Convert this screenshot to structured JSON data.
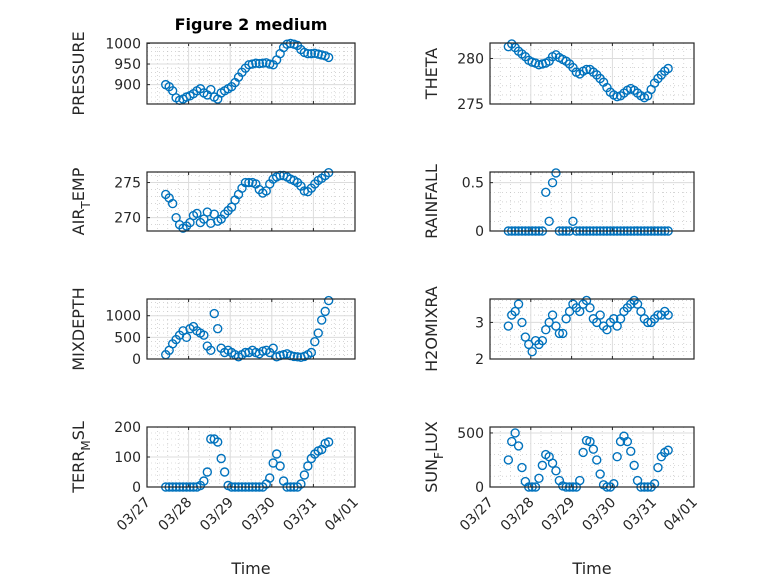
{
  "figure_title": "Figure 2 medium",
  "colors": {
    "marker": "#0072BD",
    "axis": "#262626",
    "grid": "#dcdcdc"
  },
  "chart_data": {
    "type": "scatter",
    "x_axis": {
      "label": "Time",
      "tick_labels": [
        "03/27",
        "03/28",
        "03/29",
        "03/30",
        "03/31",
        "04/01"
      ],
      "range_days_since_0327": [
        0,
        5
      ],
      "t0_days": 0.45,
      "step_hours": 2
    },
    "grid": true,
    "panels": [
      {
        "id": "pressure",
        "ylabel": {
          "main": "PRESSURE",
          "sub": "",
          "rest": ""
        },
        "ylim": [
          853,
          1001
        ],
        "yticks": [
          900,
          950,
          1000
        ],
        "values": [
          900,
          895,
          885,
          868,
          862,
          865,
          870,
          873,
          878,
          885,
          890,
          880,
          875,
          888,
          870,
          865,
          880,
          885,
          890,
          895,
          905,
          918,
          930,
          940,
          948,
          950,
          952,
          951,
          952,
          953,
          950,
          948,
          960,
          975,
          990,
          998,
          1000,
          998,
          995,
          985,
          978,
          975,
          975,
          976,
          974,
          972,
          970,
          966
        ]
      },
      {
        "id": "theta",
        "ylabel": {
          "main": "THETA",
          "sub": "",
          "rest": ""
        },
        "ylim": [
          275,
          281.7
        ],
        "yticks": [
          275,
          280
        ],
        "values": [
          281.3,
          281.6,
          281.2,
          280.8,
          280.5,
          280.2,
          279.8,
          279.6,
          279.5,
          279.3,
          279.4,
          279.5,
          279.7,
          280.2,
          280.4,
          280.1,
          279.9,
          279.7,
          279.4,
          279.0,
          278.5,
          278.3,
          278.6,
          278.8,
          278.8,
          278.5,
          278.2,
          277.8,
          277.4,
          276.8,
          276.3,
          276.0,
          275.8,
          275.9,
          276.2,
          276.5,
          276.7,
          276.5,
          276.2,
          275.9,
          275.7,
          275.9,
          276.6,
          277.3,
          277.8,
          278.2,
          278.6,
          278.9
        ]
      },
      {
        "id": "air_temp",
        "ylabel": {
          "main": "AIR",
          "sub": "T",
          "rest": "EMP"
        },
        "ylim": [
          268.1,
          276.5
        ],
        "yticks": [
          270,
          275
        ],
        "values": [
          273.3,
          272.8,
          272,
          270,
          269,
          268.5,
          268.8,
          269.3,
          270.3,
          270.6,
          269.3,
          269.8,
          270.8,
          269.2,
          270.5,
          269.5,
          269.8,
          270.5,
          271,
          271.5,
          272.5,
          273.3,
          274.2,
          275,
          275,
          275,
          274.8,
          274,
          273.5,
          273.8,
          274.8,
          275.5,
          275.8,
          276,
          276,
          275.8,
          275.5,
          275.3,
          275,
          274.5,
          273.8,
          273.7,
          274.2,
          274.8,
          275.3,
          275.6,
          276,
          276.4
        ]
      },
      {
        "id": "rainfall",
        "ylabel": {
          "main": "RAINFALL",
          "sub": "",
          "rest": ""
        },
        "ylim": [
          0,
          0.61
        ],
        "yticks": [
          0,
          0.5
        ],
        "values": [
          0,
          0,
          0,
          0,
          0,
          0,
          0,
          0,
          0,
          0,
          0,
          0.4,
          0.1,
          0.5,
          0.6,
          0,
          0,
          0,
          0,
          0.1,
          0,
          0,
          0,
          0,
          0,
          0,
          0,
          0,
          0,
          0,
          0,
          0,
          0,
          0,
          0,
          0,
          0,
          0,
          0,
          0,
          0,
          0,
          0,
          0,
          0,
          0,
          0,
          0
        ]
      },
      {
        "id": "mixdepth",
        "ylabel": {
          "main": "MIXDEPTH",
          "sub": "",
          "rest": ""
        },
        "ylim": [
          0,
          1386
        ],
        "yticks": [
          0,
          500,
          1000
        ],
        "values": [
          100,
          200,
          350,
          450,
          550,
          650,
          500,
          700,
          750,
          650,
          600,
          550,
          300,
          200,
          1050,
          700,
          250,
          150,
          200,
          150,
          100,
          50,
          100,
          150,
          150,
          200,
          150,
          120,
          180,
          200,
          150,
          250,
          50,
          80,
          100,
          120,
          80,
          60,
          50,
          40,
          60,
          100,
          150,
          400,
          600,
          900,
          1100,
          1350
        ]
      },
      {
        "id": "h2omixra",
        "ylabel": {
          "main": "H2OMIXRA",
          "sub": "",
          "rest": ""
        },
        "ylim": [
          2,
          3.64
        ],
        "yticks": [
          2,
          3
        ],
        "values": [
          2.9,
          3.2,
          3.3,
          3.5,
          3.0,
          2.6,
          2.4,
          2.2,
          2.5,
          2.4,
          2.5,
          2.8,
          3.0,
          3.2,
          2.9,
          2.7,
          2.7,
          3.1,
          3.3,
          3.5,
          3.4,
          3.3,
          3.5,
          3.6,
          3.4,
          3.1,
          3.0,
          3.2,
          2.9,
          2.8,
          3.0,
          3.1,
          2.9,
          3.1,
          3.3,
          3.4,
          3.5,
          3.6,
          3.5,
          3.3,
          3.1,
          3.0,
          3.0,
          3.1,
          3.2,
          3.2,
          3.3,
          3.2
        ]
      },
      {
        "id": "terr_msl",
        "ylabel": {
          "main": "TERR",
          "sub": "M",
          "rest": "SL"
        },
        "ylim": [
          0,
          200
        ],
        "yticks": [
          0,
          100,
          200
        ],
        "values": [
          0,
          0,
          0,
          0,
          0,
          0,
          0,
          0,
          0,
          0,
          5,
          20,
          50,
          160,
          160,
          150,
          95,
          50,
          5,
          0,
          0,
          0,
          0,
          0,
          0,
          0,
          0,
          0,
          0,
          10,
          30,
          80,
          110,
          70,
          20,
          0,
          0,
          0,
          0,
          10,
          40,
          70,
          95,
          110,
          120,
          125,
          145,
          150
        ]
      },
      {
        "id": "sun_flux",
        "ylabel": {
          "main": "SUN",
          "sub": "F",
          "rest": "LUX"
        },
        "ylim": [
          0,
          555
        ],
        "yticks": [
          0,
          500
        ],
        "values": [
          250,
          420,
          500,
          380,
          180,
          50,
          0,
          0,
          0,
          80,
          200,
          300,
          280,
          220,
          150,
          60,
          10,
          0,
          0,
          0,
          0,
          60,
          320,
          430,
          420,
          350,
          250,
          120,
          20,
          0,
          0,
          30,
          280,
          420,
          470,
          420,
          330,
          200,
          60,
          0,
          0,
          0,
          0,
          30,
          180,
          280,
          320,
          340
        ]
      }
    ]
  }
}
